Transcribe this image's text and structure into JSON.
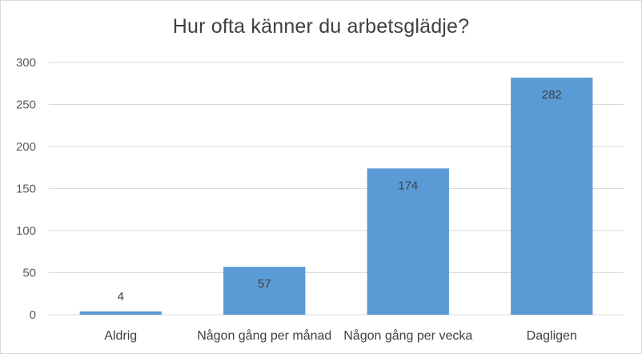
{
  "chart_data": {
    "type": "bar",
    "title": "Hur ofta känner du arbetsglädje?",
    "categories": [
      "Aldrig",
      "Någon gång per månad",
      "Någon gång per vecka",
      "Dagligen"
    ],
    "values": [
      4,
      57,
      174,
      282
    ],
    "data_labels": [
      "4",
      "57",
      "174",
      "282"
    ],
    "ylim": [
      0,
      300
    ],
    "yticks": [
      0,
      50,
      100,
      150,
      200,
      250,
      300
    ],
    "xlabel": "",
    "ylabel": "",
    "grid": true,
    "legend": "none",
    "bar_color": "#5b9bd5",
    "grid_color": "#d9d9d9"
  }
}
